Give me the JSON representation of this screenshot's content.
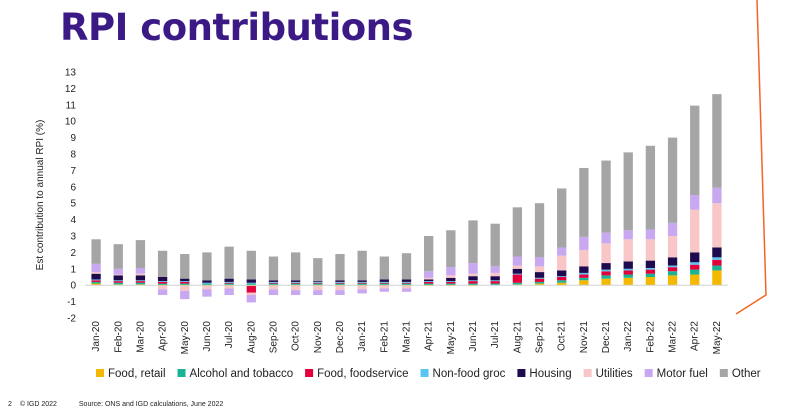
{
  "header": {
    "title": "RPI contributions"
  },
  "footer": {
    "page_number": "2",
    "copyright": "© IGD 2022",
    "source": "Source: ONS and IGD calculations, June 2022"
  },
  "colors": {
    "title": "#3b1a86",
    "accent_line": "#f26522"
  },
  "chart_data": {
    "type": "bar",
    "stacked": true,
    "ylabel": "Est contribution to annual RPI (%)",
    "xlabel": "",
    "ylim": [
      -2,
      13
    ],
    "yticks": [
      -2,
      -1,
      0,
      1,
      2,
      3,
      4,
      5,
      6,
      7,
      8,
      9,
      10,
      11,
      12,
      13
    ],
    "grid": false,
    "legend_position": "bottom",
    "categories": [
      "Jan-20",
      "Feb-20",
      "Mar-20",
      "Apr-20",
      "May-20",
      "Jun-20",
      "Jul-20",
      "Aug-20",
      "Sep-20",
      "Oct-20",
      "Nov-20",
      "Dec-20",
      "Jan-21",
      "Feb-21",
      "Mar-21",
      "Apr-21",
      "May-21",
      "Jun-21",
      "Jul-21",
      "Aug-21",
      "Sep-21",
      "Oct-21",
      "Nov-21",
      "Dec-21",
      "Jan-22",
      "Feb-22",
      "Mar-22",
      "Apr-22",
      "May-22"
    ],
    "series": [
      {
        "name": "Food, retail",
        "color": "#f5b800",
        "values": [
          0.1,
          0.05,
          0.05,
          -0.05,
          -0.05,
          -0.05,
          -0.05,
          -0.05,
          -0.05,
          -0.05,
          -0.05,
          -0.05,
          -0.05,
          -0.05,
          -0.05,
          -0.05,
          -0.05,
          -0.05,
          0.0,
          0.05,
          0.1,
          0.15,
          0.3,
          0.4,
          0.45,
          0.5,
          0.6,
          0.65,
          0.9
        ]
      },
      {
        "name": "Alcohol and tobacco",
        "color": "#1ab394",
        "values": [
          0.1,
          0.1,
          0.1,
          0.1,
          0.1,
          0.1,
          0.1,
          0.1,
          0.1,
          0.1,
          0.1,
          0.1,
          0.1,
          0.1,
          0.1,
          0.1,
          0.1,
          0.1,
          0.1,
          0.1,
          0.1,
          0.15,
          0.15,
          0.2,
          0.2,
          0.2,
          0.25,
          0.3,
          0.3
        ]
      },
      {
        "name": "Food, foodservice",
        "color": "#e4003b",
        "values": [
          0.1,
          0.1,
          0.1,
          0.1,
          0.1,
          0.0,
          0.05,
          -0.4,
          0.05,
          0.05,
          0.05,
          0.05,
          0.05,
          0.05,
          0.05,
          0.1,
          0.1,
          0.15,
          0.15,
          0.5,
          0.2,
          0.2,
          0.2,
          0.25,
          0.25,
          0.25,
          0.25,
          0.3,
          0.35
        ]
      },
      {
        "name": "Non-food groc",
        "color": "#5bc5f2",
        "values": [
          0.05,
          0.05,
          0.05,
          0.05,
          0.05,
          0.05,
          0.05,
          0.05,
          0.05,
          0.05,
          0.05,
          0.05,
          0.05,
          0.05,
          0.05,
          0.05,
          0.05,
          0.05,
          0.05,
          0.05,
          0.05,
          0.05,
          0.1,
          0.1,
          0.1,
          0.1,
          0.1,
          0.15,
          0.15
        ]
      },
      {
        "name": "Housing",
        "color": "#1e0a4e",
        "values": [
          0.35,
          0.3,
          0.3,
          0.25,
          0.15,
          0.15,
          0.2,
          0.2,
          0.1,
          0.1,
          0.05,
          0.1,
          0.1,
          0.15,
          0.15,
          0.1,
          0.2,
          0.25,
          0.25,
          0.3,
          0.35,
          0.35,
          0.4,
          0.4,
          0.45,
          0.45,
          0.5,
          0.6,
          0.6
        ]
      },
      {
        "name": "Utilities",
        "color": "#f8c6c6",
        "values": [
          0.1,
          0.05,
          0.1,
          -0.2,
          -0.3,
          -0.2,
          -0.15,
          -0.15,
          -0.2,
          -0.25,
          -0.25,
          -0.25,
          -0.2,
          -0.15,
          -0.15,
          0.1,
          0.15,
          0.15,
          0.2,
          0.2,
          0.35,
          0.9,
          1.0,
          1.2,
          1.35,
          1.3,
          1.3,
          2.6,
          2.7
        ]
      },
      {
        "name": "Motor fuel",
        "color": "#c8a8f0",
        "values": [
          0.5,
          0.35,
          0.35,
          -0.35,
          -0.5,
          -0.45,
          -0.4,
          -0.45,
          -0.35,
          -0.3,
          -0.3,
          -0.3,
          -0.25,
          -0.2,
          -0.2,
          0.4,
          0.5,
          0.65,
          0.4,
          0.55,
          0.55,
          0.5,
          0.8,
          0.65,
          0.55,
          0.6,
          0.8,
          0.9,
          0.95
        ]
      },
      {
        "name": "Other",
        "color": "#a5a5a5",
        "values": [
          1.5,
          1.5,
          1.7,
          1.6,
          1.5,
          1.7,
          1.95,
          1.75,
          1.45,
          1.7,
          1.4,
          1.6,
          1.8,
          1.4,
          1.6,
          2.15,
          2.25,
          2.6,
          2.6,
          3.0,
          3.3,
          3.6,
          4.2,
          4.4,
          4.75,
          5.1,
          5.2,
          5.45,
          5.7
        ]
      }
    ]
  }
}
